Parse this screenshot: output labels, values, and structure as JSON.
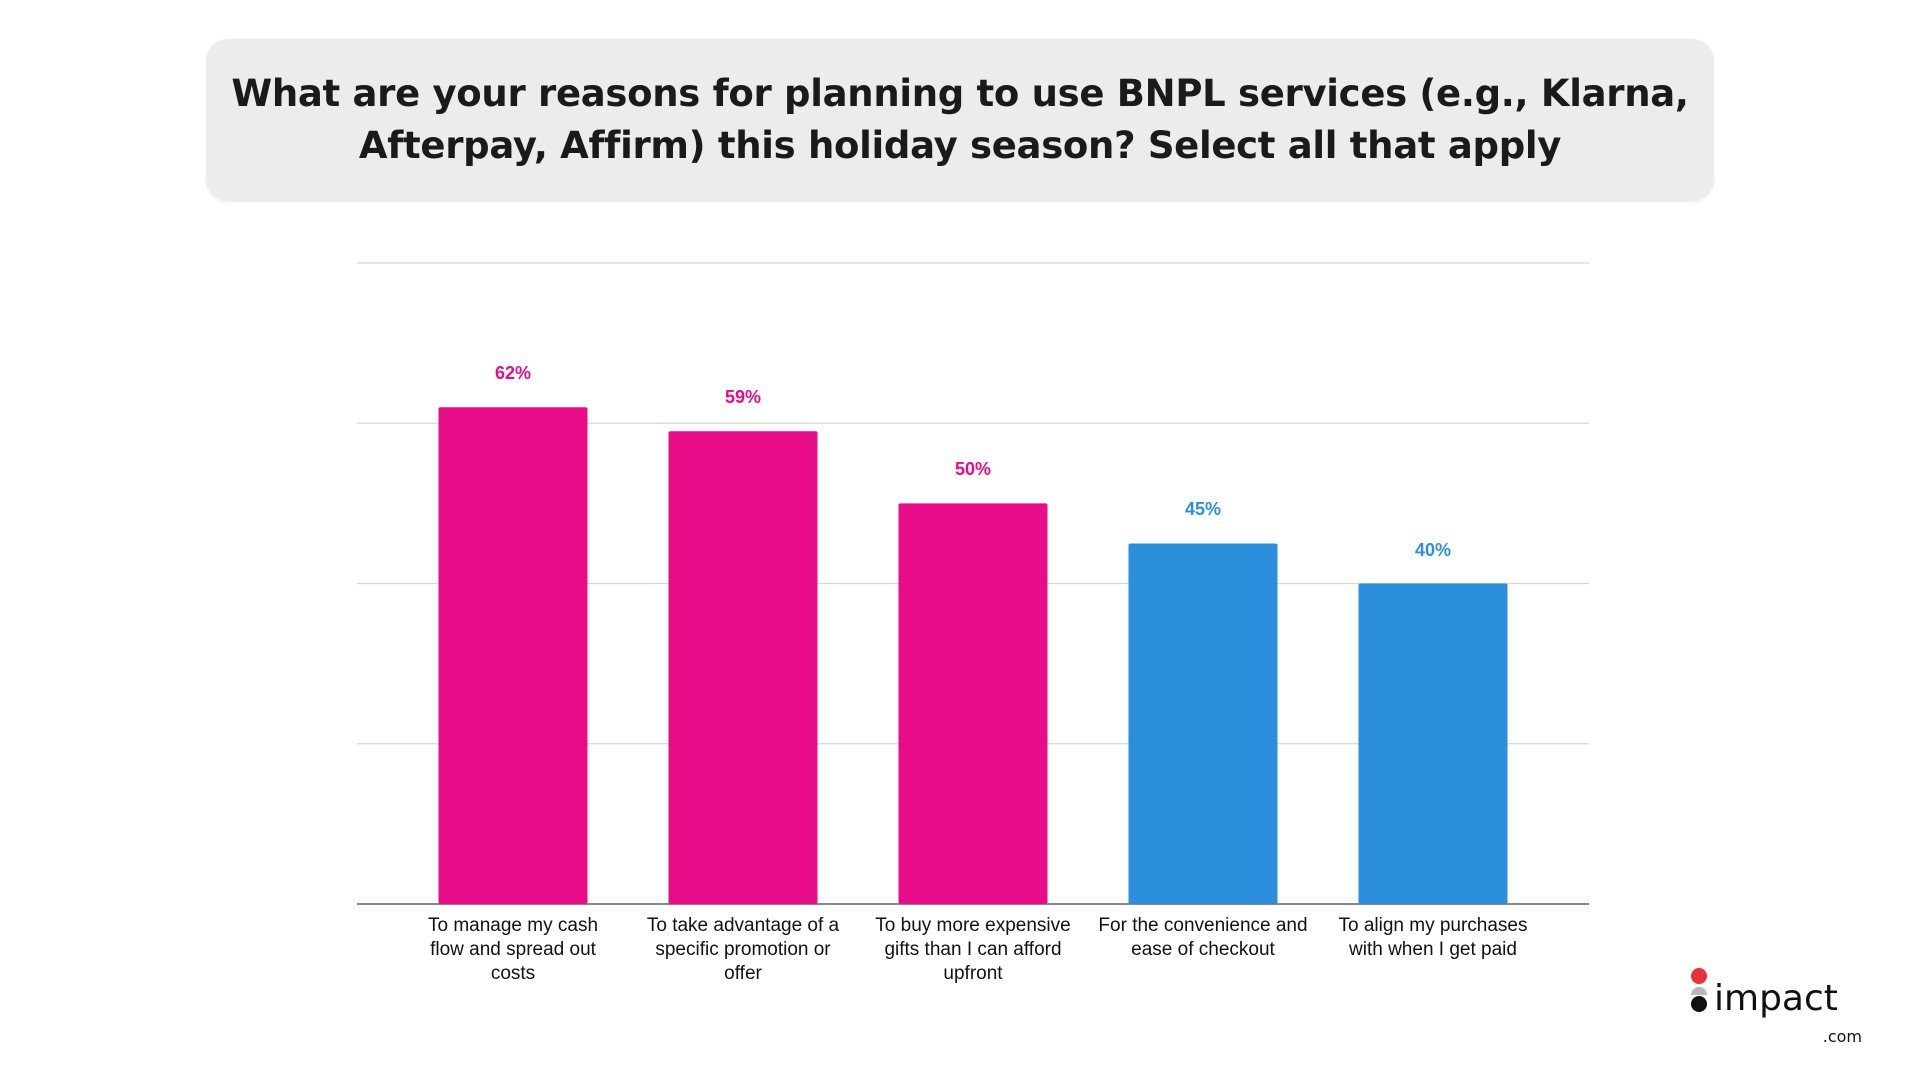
{
  "chart_data": {
    "type": "bar",
    "title": "What are your reasons for planning to use BNPL services (e.g., Klarna,\nAfterpay, Affirm) this holiday season? Select all that apply",
    "categories": [
      "To manage my cash\nflow and spread out\ncosts",
      "To take advantage of a\nspecific promotion or\noffer",
      "To buy more expensive\ngifts than I can afford\nupfront",
      "For the convenience and\nease of checkout",
      "To align my purchases\nwith when I get paid"
    ],
    "values": [
      62,
      59,
      50,
      45,
      40
    ],
    "value_labels": [
      "62%",
      "59%",
      "50%",
      "45%",
      "40%"
    ],
    "bar_colors": [
      "#e80c88",
      "#e80c88",
      "#e80c88",
      "#2b8fdb",
      "#2b8fdb"
    ],
    "unit": "%",
    "ylim": [
      0,
      80
    ],
    "gridlines": [
      0,
      20,
      40,
      60,
      80
    ],
    "grid": true,
    "y_axis_labels_shown": false,
    "legend": "none"
  },
  "logo": {
    "text": "impact",
    "suffix": ".com",
    "dot_colors": [
      "#e8303a",
      "#b7b9bc",
      "#111111"
    ]
  }
}
